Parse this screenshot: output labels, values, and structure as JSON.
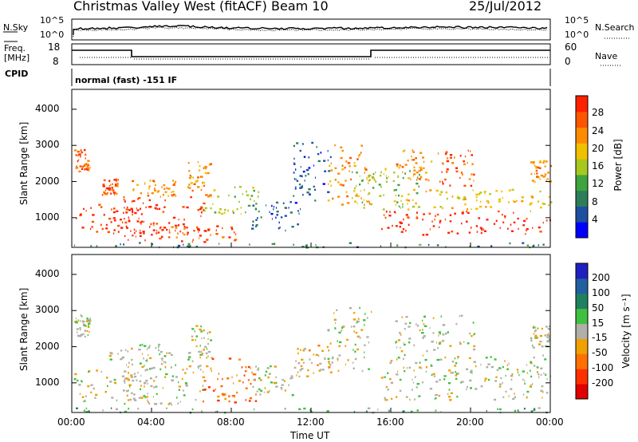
{
  "header": {
    "station": "Christmas Valley West (fitACF)",
    "beam": "Beam 10",
    "date": "25/Jul/2012"
  },
  "strip_labels": {
    "nsky": "N.Sky",
    "nsky_ticks": [
      "10^5",
      "10^0"
    ],
    "nsearch": "N.Search",
    "nsearch_ticks": [
      "10^5",
      "10^0"
    ],
    "freq": "Freq.",
    "freq_unit": "[MHz]",
    "freq_ticks": [
      "18",
      "8"
    ],
    "nave": "Nave",
    "nave_ticks": [
      "60",
      "0"
    ],
    "cpid": "CPID",
    "cpid_value": "normal (fast) -151 IF"
  },
  "colors": {
    "power": [
      "#0000ff",
      "#1f4fa0",
      "#2e7d5a",
      "#3fa33f",
      "#a8c820",
      "#f0c000",
      "#ff8c00",
      "#ff5500",
      "#ff2000"
    ],
    "velocity": [
      "#2020c0",
      "#2060a0",
      "#208060",
      "#40c040",
      "#b0b0a8",
      "#f0a000",
      "#ff7000",
      "#ff3000",
      "#e00000"
    ],
    "ground": "#b4b4b0"
  },
  "chart_data": [
    {
      "type": "heatmap",
      "name": "power",
      "xlabel": "Time UT",
      "ylabel": "Slant Range [km]",
      "x_ticks": [
        "00:00",
        "04:00",
        "08:00",
        "12:00",
        "16:00",
        "20:00",
        "00:00"
      ],
      "y_ticks": [
        1000,
        2000,
        3000,
        4000
      ],
      "ylim": [
        180,
        4550
      ],
      "xlim_hours": [
        0,
        24
      ],
      "colorbar_label": "Power [dB]",
      "colorbar_ticks": [
        4,
        8,
        12,
        16,
        20,
        24,
        28
      ],
      "regions": [
        {
          "t0": 0.1,
          "t1": 4.2,
          "r0": 500,
          "r1": 1400,
          "level": 8
        },
        {
          "t0": 2.5,
          "t1": 6.6,
          "r0": 400,
          "r1": 1600,
          "level": 8
        },
        {
          "t0": 4.0,
          "t1": 8.5,
          "r0": 350,
          "r1": 800,
          "level": 7
        },
        {
          "t0": 6.5,
          "t1": 9.5,
          "r0": 1100,
          "r1": 1900,
          "level": 4
        },
        {
          "t0": 9.0,
          "t1": 11.5,
          "r0": 650,
          "r1": 1500,
          "level": 1
        },
        {
          "t0": 11.0,
          "t1": 13.0,
          "r0": 1500,
          "r1": 3100,
          "level": 1
        },
        {
          "t0": 12.8,
          "t1": 15.0,
          "r0": 1300,
          "r1": 3100,
          "level": 6
        },
        {
          "t0": 14.0,
          "t1": 17.5,
          "r0": 1200,
          "r1": 2400,
          "level": 4
        },
        {
          "t0": 15.5,
          "t1": 24.0,
          "r0": 550,
          "r1": 1200,
          "level": 8
        },
        {
          "t0": 16.5,
          "t1": 24.0,
          "r0": 1200,
          "r1": 1800,
          "level": 5
        },
        {
          "t0": 0.1,
          "t1": 0.9,
          "r0": 2300,
          "r1": 2900,
          "level": 7
        },
        {
          "t0": 1.5,
          "t1": 2.3,
          "r0": 1650,
          "r1": 2100,
          "level": 7
        },
        {
          "t0": 3.0,
          "t1": 5.2,
          "r0": 1600,
          "r1": 2050,
          "level": 6
        },
        {
          "t0": 5.8,
          "t1": 7.0,
          "r0": 1600,
          "r1": 2600,
          "level": 6
        },
        {
          "t0": 16.2,
          "t1": 18.0,
          "r0": 2050,
          "r1": 2900,
          "level": 6
        },
        {
          "t0": 18.3,
          "t1": 20.2,
          "r0": 1900,
          "r1": 2900,
          "level": 7
        },
        {
          "t0": 23.0,
          "t1": 24.0,
          "r0": 2000,
          "r1": 2600,
          "level": 6
        },
        {
          "t0": 0.0,
          "t1": 24.0,
          "r0": 200,
          "r1": 330,
          "level": 2
        }
      ]
    },
    {
      "type": "heatmap",
      "name": "velocity",
      "xlabel": "Time UT",
      "ylabel": "Slant Range [km]",
      "x_ticks": [
        "00:00",
        "04:00",
        "08:00",
        "12:00",
        "16:00",
        "20:00",
        "00:00"
      ],
      "y_ticks": [
        1000,
        2000,
        3000,
        4000
      ],
      "ylim": [
        180,
        4550
      ],
      "xlim_hours": [
        0,
        24
      ],
      "colorbar_label": "Velocity [m s⁻¹]",
      "colorbar_ticks": [
        200,
        100,
        50,
        15,
        -15,
        -50,
        -100,
        -200
      ],
      "regions": [
        {
          "t0": 0.1,
          "t1": 4.2,
          "r0": 500,
          "r1": 1400,
          "level": 4
        },
        {
          "t0": 2.5,
          "t1": 6.6,
          "r0": 400,
          "r1": 1600,
          "level": 4
        },
        {
          "t0": 6.4,
          "t1": 9.2,
          "r0": 450,
          "r1": 1700,
          "level": 6
        },
        {
          "t0": 9.0,
          "t1": 11.2,
          "r0": 650,
          "r1": 1500,
          "level": 4
        },
        {
          "t0": 11.2,
          "t1": 13.0,
          "r0": 1200,
          "r1": 2100,
          "level": 5
        },
        {
          "t0": 12.8,
          "t1": 15.0,
          "r0": 1300,
          "r1": 3100,
          "level": 4
        },
        {
          "t0": 15.5,
          "t1": 24.0,
          "r0": 550,
          "r1": 1800,
          "level": 4
        },
        {
          "t0": 0.1,
          "t1": 0.9,
          "r0": 2300,
          "r1": 2900,
          "level": 4
        },
        {
          "t0": 1.8,
          "t1": 5.2,
          "r0": 1600,
          "r1": 2100,
          "level": 4
        },
        {
          "t0": 5.8,
          "t1": 7.0,
          "r0": 1600,
          "r1": 2600,
          "level": 4
        },
        {
          "t0": 16.2,
          "t1": 20.2,
          "r0": 1900,
          "r1": 2900,
          "level": 4
        },
        {
          "t0": 23.0,
          "t1": 24.0,
          "r0": 2000,
          "r1": 2600,
          "level": 4
        },
        {
          "t0": 0.0,
          "t1": 24.0,
          "r0": 200,
          "r1": 330,
          "level": 3
        }
      ]
    }
  ]
}
